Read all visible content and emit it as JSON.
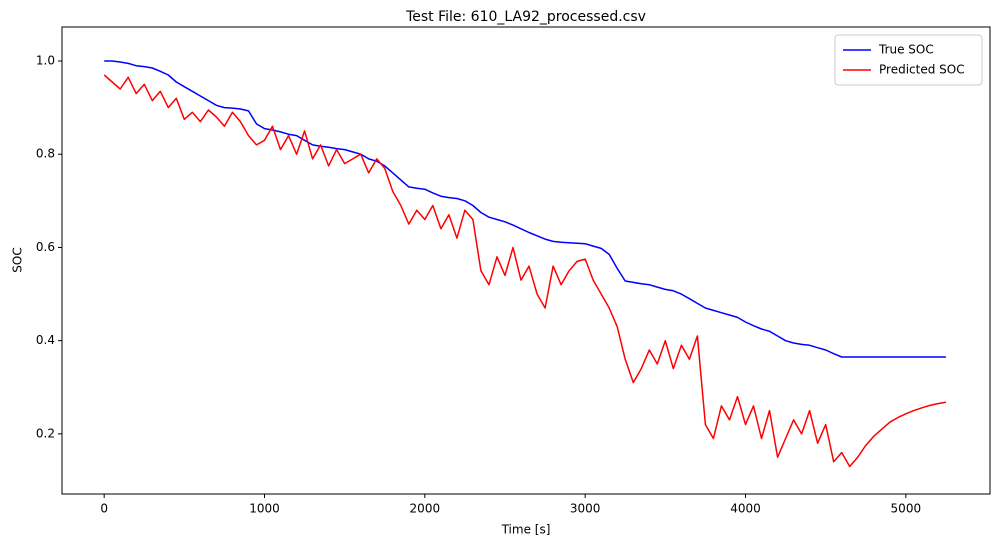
{
  "chart_data": {
    "type": "line",
    "title": "Test File: 610_LA92_processed.csv",
    "x_label": "Time [s]",
    "y_label": "SOC",
    "x": [
      0,
      50,
      100,
      150,
      200,
      250,
      300,
      350,
      400,
      450,
      500,
      550,
      600,
      650,
      700,
      750,
      800,
      850,
      900,
      950,
      1000,
      1050,
      1100,
      1150,
      1200,
      1250,
      1300,
      1350,
      1400,
      1450,
      1500,
      1550,
      1600,
      1650,
      1700,
      1750,
      1800,
      1850,
      1900,
      1950,
      2000,
      2050,
      2100,
      2150,
      2200,
      2250,
      2300,
      2350,
      2400,
      2450,
      2500,
      2550,
      2600,
      2650,
      2700,
      2750,
      2800,
      2850,
      2900,
      2950,
      3000,
      3050,
      3100,
      3150,
      3200,
      3250,
      3300,
      3350,
      3400,
      3450,
      3500,
      3550,
      3600,
      3650,
      3700,
      3750,
      3800,
      3850,
      3900,
      3950,
      4000,
      4050,
      4100,
      4150,
      4200,
      4250,
      4300,
      4350,
      4400,
      4450,
      4500,
      4550,
      4600,
      4650,
      4700,
      4750,
      4800,
      4850,
      4900,
      4950,
      5000,
      5050,
      5100,
      5150,
      5200,
      5250
    ],
    "series": [
      {
        "name": "True SOC",
        "color": "#0000ff",
        "values": [
          1.0,
          1.0,
          0.998,
          0.995,
          0.99,
          0.988,
          0.985,
          0.978,
          0.97,
          0.955,
          0.945,
          0.935,
          0.925,
          0.915,
          0.905,
          0.9,
          0.899,
          0.897,
          0.893,
          0.865,
          0.855,
          0.852,
          0.848,
          0.843,
          0.84,
          0.83,
          0.82,
          0.817,
          0.815,
          0.812,
          0.81,
          0.805,
          0.8,
          0.79,
          0.785,
          0.775,
          0.76,
          0.745,
          0.73,
          0.727,
          0.725,
          0.717,
          0.71,
          0.707,
          0.705,
          0.7,
          0.69,
          0.675,
          0.665,
          0.66,
          0.655,
          0.648,
          0.64,
          0.632,
          0.625,
          0.618,
          0.613,
          0.611,
          0.61,
          0.609,
          0.608,
          0.603,
          0.598,
          0.585,
          0.555,
          0.528,
          0.525,
          0.522,
          0.52,
          0.515,
          0.51,
          0.507,
          0.5,
          0.49,
          0.48,
          0.47,
          0.465,
          0.46,
          0.455,
          0.45,
          0.44,
          0.432,
          0.425,
          0.42,
          0.41,
          0.4,
          0.395,
          0.392,
          0.39,
          0.385,
          0.38,
          0.372,
          0.365,
          0.365,
          0.365,
          0.365,
          0.365,
          0.365,
          0.365,
          0.365,
          0.365,
          0.365,
          0.365,
          0.365,
          0.365,
          0.365
        ]
      },
      {
        "name": "Predicted SOC",
        "color": "#ff0000",
        "values": [
          0.97,
          0.955,
          0.94,
          0.965,
          0.93,
          0.95,
          0.915,
          0.935,
          0.9,
          0.92,
          0.875,
          0.89,
          0.87,
          0.895,
          0.88,
          0.86,
          0.89,
          0.87,
          0.84,
          0.82,
          0.83,
          0.86,
          0.81,
          0.84,
          0.8,
          0.85,
          0.79,
          0.82,
          0.775,
          0.81,
          0.78,
          0.79,
          0.8,
          0.76,
          0.79,
          0.77,
          0.72,
          0.69,
          0.65,
          0.68,
          0.66,
          0.69,
          0.64,
          0.67,
          0.62,
          0.68,
          0.66,
          0.55,
          0.52,
          0.58,
          0.54,
          0.6,
          0.53,
          0.56,
          0.5,
          0.47,
          0.56,
          0.52,
          0.55,
          0.57,
          0.575,
          0.53,
          0.5,
          0.47,
          0.43,
          0.36,
          0.31,
          0.34,
          0.38,
          0.35,
          0.4,
          0.34,
          0.39,
          0.36,
          0.41,
          0.22,
          0.19,
          0.26,
          0.23,
          0.28,
          0.22,
          0.26,
          0.19,
          0.25,
          0.15,
          0.19,
          0.23,
          0.2,
          0.25,
          0.18,
          0.22,
          0.14,
          0.16,
          0.13,
          0.15,
          0.175,
          0.195,
          0.21,
          0.225,
          0.235,
          0.243,
          0.25,
          0.256,
          0.261,
          0.265,
          0.268
        ]
      }
    ],
    "xlim": [
      -263,
      5525
    ],
    "ylim": [
      0.071,
      1.073
    ],
    "xticks": [
      0,
      1000,
      2000,
      3000,
      4000,
      5000
    ],
    "yticks": [
      0.2,
      0.4,
      0.6,
      0.8,
      {
        "value": 1,
        "label": "1.0"
      }
    ],
    "legend": "upper right"
  }
}
